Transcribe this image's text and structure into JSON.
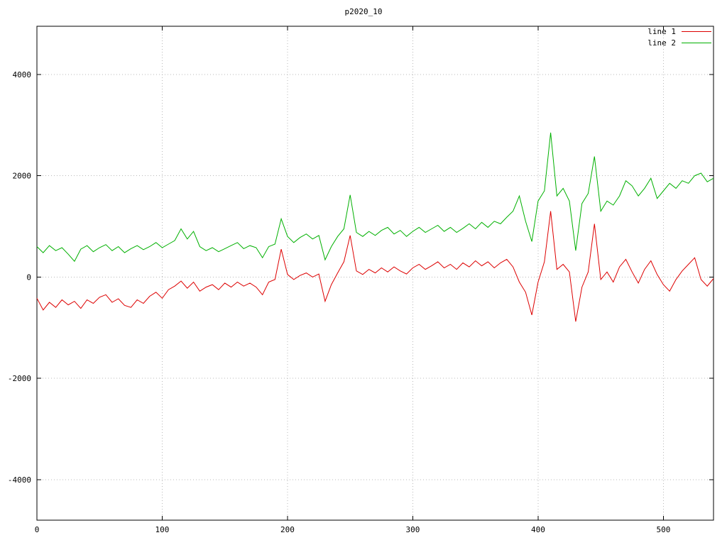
{
  "chart_data": {
    "type": "line",
    "title": "p2020_10",
    "xlabel": "",
    "ylabel": "",
    "xlim": [
      0,
      540
    ],
    "ylim": [
      -4800,
      4950
    ],
    "xticks": [
      0,
      100,
      200,
      300,
      400,
      500
    ],
    "yticks": [
      -4000,
      -2000,
      0,
      2000,
      4000
    ],
    "grid": true,
    "legend_position": "top-right",
    "background": "#ffffff",
    "x": [
      0,
      5,
      10,
      15,
      20,
      25,
      30,
      35,
      40,
      45,
      50,
      55,
      60,
      65,
      70,
      75,
      80,
      85,
      90,
      95,
      100,
      105,
      110,
      115,
      120,
      125,
      130,
      135,
      140,
      145,
      150,
      155,
      160,
      165,
      170,
      175,
      180,
      185,
      190,
      195,
      200,
      205,
      210,
      215,
      220,
      225,
      230,
      235,
      240,
      245,
      250,
      255,
      260,
      265,
      270,
      275,
      280,
      285,
      290,
      295,
      300,
      305,
      310,
      315,
      320,
      325,
      330,
      335,
      340,
      345,
      350,
      355,
      360,
      365,
      370,
      375,
      380,
      385,
      390,
      395,
      400,
      405,
      410,
      415,
      420,
      425,
      430,
      435,
      440,
      445,
      450,
      455,
      460,
      465,
      470,
      475,
      480,
      485,
      490,
      495,
      500,
      505,
      510,
      515,
      520,
      525,
      530,
      535,
      540
    ],
    "series": [
      {
        "name": "line 1",
        "color": "#dd0000",
        "values": [
          -420,
          -650,
          -500,
          -600,
          -450,
          -550,
          -480,
          -620,
          -450,
          -520,
          -400,
          -350,
          -500,
          -430,
          -560,
          -600,
          -450,
          -520,
          -380,
          -300,
          -420,
          -250,
          -180,
          -80,
          -220,
          -100,
          -280,
          -200,
          -150,
          -250,
          -120,
          -200,
          -100,
          -180,
          -120,
          -200,
          -350,
          -100,
          -50,
          550,
          50,
          -50,
          30,
          80,
          0,
          60,
          -480,
          -150,
          80,
          300,
          820,
          120,
          50,
          150,
          80,
          180,
          100,
          200,
          120,
          60,
          180,
          250,
          150,
          220,
          300,
          180,
          250,
          150,
          280,
          200,
          320,
          220,
          300,
          180,
          280,
          350,
          200,
          -100,
          -300,
          -750,
          -100,
          300,
          1300,
          150,
          250,
          100,
          -880,
          -200,
          100,
          1050,
          -50,
          100,
          -100,
          200,
          350,
          100,
          -120,
          150,
          320,
          50,
          -150,
          -280,
          -50,
          120,
          250,
          380,
          -50,
          -180,
          -30
        ]
      },
      {
        "name": "line 2",
        "color": "#00b000",
        "values": [
          600,
          480,
          620,
          520,
          580,
          450,
          310,
          550,
          620,
          500,
          580,
          640,
          520,
          600,
          480,
          560,
          620,
          540,
          600,
          680,
          580,
          650,
          720,
          950,
          750,
          900,
          600,
          520,
          580,
          500,
          560,
          620,
          680,
          560,
          620,
          580,
          380,
          600,
          650,
          1150,
          800,
          680,
          780,
          850,
          750,
          820,
          340,
          600,
          800,
          950,
          1620,
          880,
          800,
          900,
          820,
          920,
          980,
          850,
          920,
          800,
          900,
          980,
          880,
          950,
          1020,
          900,
          980,
          880,
          960,
          1050,
          950,
          1080,
          980,
          1100,
          1050,
          1180,
          1300,
          1600,
          1100,
          700,
          1500,
          1700,
          2850,
          1600,
          1750,
          1500,
          520,
          1450,
          1650,
          2380,
          1300,
          1500,
          1420,
          1600,
          1900,
          1800,
          1600,
          1750,
          1950,
          1550,
          1700,
          1850,
          1750,
          1900,
          1850,
          2000,
          2050,
          1880,
          1950
        ]
      }
    ]
  }
}
